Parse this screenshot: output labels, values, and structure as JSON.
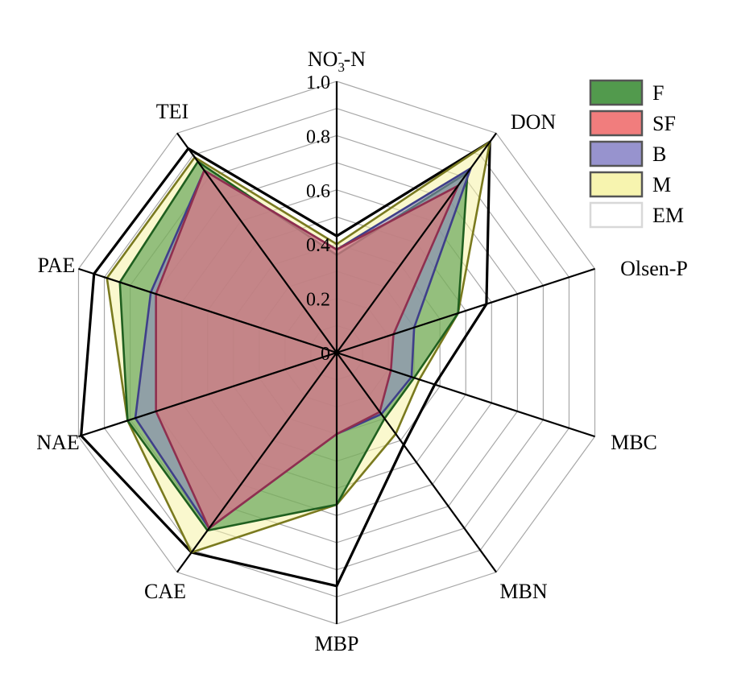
{
  "chart_data": {
    "type": "radar",
    "axes": [
      "NO3--N",
      "DON",
      "Olsen-P",
      "MBC",
      "MBN",
      "MBP",
      "CAE",
      "NAE",
      "PAE",
      "TEI"
    ],
    "rlim": [
      0,
      1.0
    ],
    "ticks": [
      "0",
      "0.2",
      "0.4",
      "0.6",
      "0.8",
      "1.0"
    ],
    "grid": true,
    "legend_position": "top-right",
    "series": [
      {
        "name": "EM",
        "color": "#ffffff",
        "stroke": "#000000",
        "values": [
          0.43,
          0.96,
          0.58,
          0.38,
          0.42,
          0.86,
          0.91,
          0.99,
          0.94,
          0.93
        ]
      },
      {
        "name": "M",
        "color": "#f6f3a6",
        "stroke": "#7a7a1f",
        "values": [
          0.4,
          0.96,
          0.47,
          0.32,
          0.37,
          0.56,
          0.91,
          0.81,
          0.89,
          0.89
        ]
      },
      {
        "name": "F",
        "color": "#3f8f3a",
        "stroke": "#1f5f1f",
        "values": [
          0.36,
          0.82,
          0.47,
          0.3,
          0.3,
          0.56,
          0.81,
          0.81,
          0.84,
          0.87
        ]
      },
      {
        "name": "B",
        "color": "#8c87c9",
        "stroke": "#3f3f8a",
        "values": [
          0.38,
          0.84,
          0.3,
          0.29,
          0.28,
          0.3,
          0.8,
          0.78,
          0.72,
          0.83
        ]
      },
      {
        "name": "SF",
        "color": "#ef6f6f",
        "stroke": "#8f2f4f",
        "values": [
          0.38,
          0.76,
          0.22,
          0.21,
          0.27,
          0.3,
          0.8,
          0.7,
          0.7,
          0.83
        ]
      }
    ],
    "legend": [
      "F",
      "SF",
      "B",
      "M",
      "EM"
    ]
  },
  "colors": {
    "F": "#3f8f3a",
    "SF": "#ef6f6f",
    "B": "#8c87c9",
    "M": "#f6f3a6",
    "EM": "#ffffff"
  }
}
